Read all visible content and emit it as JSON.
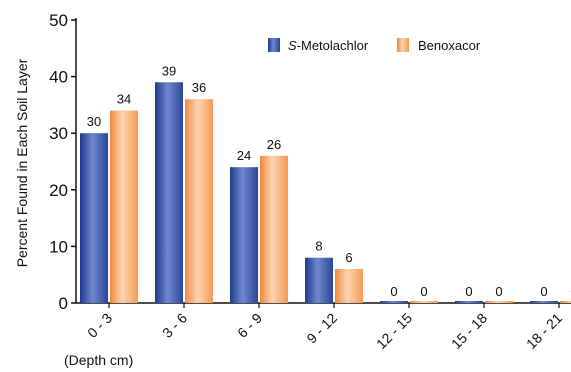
{
  "chart_data": {
    "type": "bar",
    "categories": [
      "0 - 3",
      "3 - 6",
      "6 - 9",
      "9 - 12",
      "12 - 15",
      "15 - 18",
      "18 - 21"
    ],
    "series": [
      {
        "name_prefix": "S",
        "name_suffix": "-Metolachlor",
        "name": "S-Metolachlor",
        "values": [
          30,
          39,
          24,
          8,
          0,
          0,
          0
        ],
        "color": "#3d58a8"
      },
      {
        "name": "Benoxacor",
        "values": [
          34,
          36,
          26,
          6,
          0,
          0,
          0
        ],
        "color": "#f6a86a"
      }
    ],
    "title": "",
    "xlabel": "(Depth cm)",
    "ylabel": "Percent Found in Each Soil Layer",
    "ylim": [
      0,
      50
    ],
    "yticks": [
      "0",
      "10",
      "20",
      "30",
      "40",
      "50"
    ],
    "grid": false,
    "legend_position": "top-right"
  }
}
